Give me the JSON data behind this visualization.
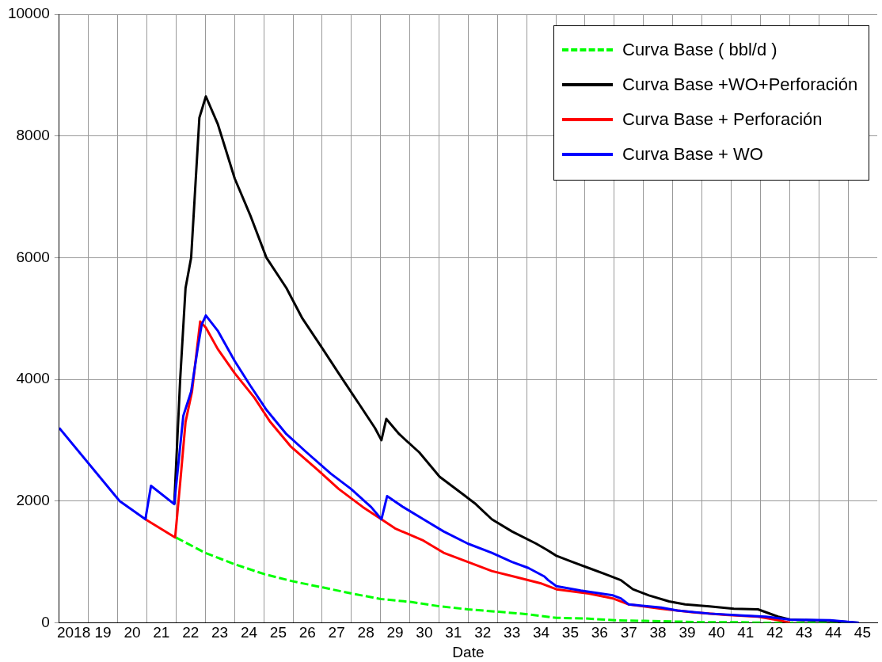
{
  "chart_data": {
    "type": "line",
    "xlabel": "Date",
    "legend": "top right",
    "grid": true,
    "marker": "none",
    "xlim": [
      "2018",
      "2046"
    ],
    "ylim": [
      0,
      10000
    ],
    "yticks": [
      0,
      2000,
      4000,
      6000,
      8000,
      10000
    ],
    "xticks": [
      {
        "value": "2019",
        "label": null
      },
      {
        "value": "2020",
        "label": null
      },
      {
        "value": "2021",
        "label": null
      },
      {
        "value": "2022",
        "label": null
      },
      {
        "value": "2023",
        "label": null
      },
      {
        "value": "2024",
        "label": null
      },
      {
        "value": "2025",
        "label": null
      },
      {
        "value": "2026",
        "label": null
      },
      {
        "value": "2027",
        "label": null
      },
      {
        "value": "2028",
        "label": null
      },
      {
        "value": "2029",
        "label": null
      },
      {
        "value": "2030",
        "label": null
      },
      {
        "value": "2031",
        "label": null
      },
      {
        "value": "2032",
        "label": null
      },
      {
        "value": "2033",
        "label": null
      },
      {
        "value": "2034",
        "label": null
      },
      {
        "value": "2035",
        "label": null
      },
      {
        "value": "2036",
        "label": null
      },
      {
        "value": "2037",
        "label": null
      },
      {
        "value": "2038",
        "label": null
      },
      {
        "value": "2039",
        "label": null
      },
      {
        "value": "2040",
        "label": null
      },
      {
        "value": "2041",
        "label": null
      },
      {
        "value": "2042",
        "label": null
      },
      {
        "value": "2043",
        "label": null
      },
      {
        "value": "2044",
        "label": null
      },
      {
        "value": "2045",
        "label": null
      },
      {
        "value": "2018-07-01",
        "label": "2018"
      },
      {
        "value": "2019-07-01",
        "label": "19"
      },
      {
        "value": "2020-07-01",
        "label": "20"
      },
      {
        "value": "2021-07-01",
        "label": "21"
      },
      {
        "value": "2022-07-01",
        "label": "22"
      },
      {
        "value": "2023-07-01",
        "label": "23"
      },
      {
        "value": "2024-07-01",
        "label": "24"
      },
      {
        "value": "2025-07-01",
        "label": "25"
      },
      {
        "value": "2026-07-01",
        "label": "26"
      },
      {
        "value": "2027-07-01",
        "label": "27"
      },
      {
        "value": "2028-07-01",
        "label": "28"
      },
      {
        "value": "2029-07-01",
        "label": "29"
      },
      {
        "value": "2030-07-01",
        "label": "30"
      },
      {
        "value": "2031-07-01",
        "label": "31"
      },
      {
        "value": "2032-07-01",
        "label": "32"
      },
      {
        "value": "2033-07-01",
        "label": "33"
      },
      {
        "value": "2034-07-01",
        "label": "34"
      },
      {
        "value": "2035-07-01",
        "label": "35"
      },
      {
        "value": "2036-07-01",
        "label": "36"
      },
      {
        "value": "2037-07-01",
        "label": "37"
      },
      {
        "value": "2038-07-01",
        "label": "38"
      },
      {
        "value": "2039-07-01",
        "label": "39"
      },
      {
        "value": "2040-07-01",
        "label": "40"
      },
      {
        "value": "2041-07-01",
        "label": "41"
      },
      {
        "value": "2042-07-01",
        "label": "42"
      },
      {
        "value": "2043-07-01",
        "label": "43"
      },
      {
        "value": "2044-07-01",
        "label": "44"
      },
      {
        "value": "2045-07-01",
        "label": "45"
      }
    ],
    "series": [
      {
        "name": "Curva Base ( bbl/d )",
        "color": "#00ff00",
        "line_style": "dashed",
        "x": [
          "2022-01-01",
          "2022-12-27",
          "2024-01-05",
          "2025-01-05",
          "2026-01-01",
          "2027-01-08",
          "2028-01-05",
          "2029-01-05",
          "2030-01-23",
          "2031-01-08",
          "2031-12-27",
          "2033-01-12",
          "2034-01-12",
          "2035-01-08",
          "2036-01-05",
          "2037-01-05",
          "2038-01-23",
          "2039-01-08",
          "2039-12-27",
          "2041-02-03",
          "2042-01-23",
          "2045-05-15"
        ],
        "values": [
          1400,
          1150,
          960,
          800,
          680,
          580,
          480,
          390,
          340,
          270,
          220,
          180,
          140,
          80,
          70,
          40,
          30,
          20,
          10,
          10,
          0,
          0
        ]
      },
      {
        "name": "Curva Base +WO+Perforación",
        "color": "#000000",
        "x": [
          "2021-12-09",
          "2022-02-21",
          "2022-04-29",
          "2022-07-08",
          "2022-10-19",
          "2023-01-08",
          "2023-06-05",
          "2024-01-04",
          "2024-07-15",
          "2025-02-03",
          "2025-10-11",
          "2026-04-29",
          "2027-01-08",
          "2027-07-26",
          "2028-04-04",
          "2028-10-22",
          "2029-01-11",
          "2029-03-13",
          "2029-08-21",
          "2030-04-29",
          "2031-01-08",
          "2031-11-07",
          "2032-04-04",
          "2032-10-22",
          "2033-07-01",
          "2034-04-29",
          "2034-09-09",
          "2035-01-08",
          "2035-07-26",
          "2036-02-14",
          "2036-09-05",
          "2037-03-23",
          "2037-08-21",
          "2038-03-09",
          "2038-11-17",
          "2039-06-05",
          "2040-04-04",
          "2041-02-03",
          "2041-12-02",
          "2042-08-10",
          "2043-01-08",
          "2044-05-25",
          "2045-05-15"
        ],
        "values": [
          1950,
          4000,
          5500,
          6000,
          8300,
          8650,
          8200,
          7300,
          6700,
          6000,
          5500,
          5000,
          4500,
          4100,
          3600,
          3200,
          3000,
          3350,
          3100,
          2800,
          2400,
          2100,
          1950,
          1700,
          1500,
          1300,
          1200,
          1100,
          1000,
          900,
          800,
          700,
          550,
          450,
          350,
          300,
          270,
          230,
          220,
          100,
          50,
          30,
          0
        ]
      },
      {
        "name": "Curva Base + Perforación",
        "color": "#ff0000",
        "x": [
          "2020-12-13",
          "2021-12-20",
          "2022-02-21",
          "2022-04-29",
          "2022-07-19",
          "2022-10-29",
          "2023-01-08",
          "2023-06-05",
          "2024-01-04",
          "2024-09-05",
          "2025-03-23",
          "2025-12-02",
          "2026-11-17",
          "2027-07-26",
          "2028-05-25",
          "2029-01-11",
          "2029-07-01",
          "2030-06-20",
          "2031-02-28",
          "2031-12-27",
          "2032-10-22",
          "2033-08-21",
          "2034-06-20",
          "2035-01-08",
          "2036-02-14",
          "2036-12-13",
          "2037-07-01",
          "2038-08-10",
          "2039-09-16",
          "2040-10-22",
          "2041-12-02",
          "2042-09-27",
          "2043-01-08"
        ],
        "values": [
          1700,
          1400,
          2300,
          3300,
          3800,
          4950,
          4850,
          4500,
          4100,
          3700,
          3300,
          2900,
          2500,
          2200,
          1900,
          1700,
          1550,
          1350,
          1150,
          1000,
          850,
          750,
          650,
          550,
          480,
          400,
          300,
          230,
          170,
          130,
          100,
          30,
          0
        ]
      },
      {
        "name": "Curva Base + WO",
        "color": "#0000ff",
        "x": [
          "2018-01-01",
          "2020-01-26",
          "2020-12-13",
          "2021-02-21",
          "2021-12-09",
          "2022-04-01",
          "2022-07-08",
          "2022-09-27",
          "2022-11-17",
          "2023-01-08",
          "2023-06-05",
          "2024-01-04",
          "2024-07-15",
          "2025-02-03",
          "2025-10-11",
          "2026-06-20",
          "2027-04-19",
          "2027-12-27",
          "2028-09-05",
          "2029-01-11",
          "2029-03-23",
          "2029-10-11",
          "2030-06-20",
          "2031-02-28",
          "2031-12-27",
          "2032-10-22",
          "2033-07-01",
          "2034-01-22",
          "2034-08-10",
          "2034-09-27",
          "2035-01-08",
          "2035-11-07",
          "2036-12-13",
          "2037-03-23",
          "2037-07-01",
          "2038-08-10",
          "2039-02-28",
          "2040-04-04",
          "2041-05-15",
          "2042-03-09",
          "2043-01-08",
          "2044-05-25",
          "2045-05-15"
        ],
        "values": [
          3200,
          2000,
          1700,
          2250,
          1950,
          3400,
          3800,
          4500,
          4900,
          5050,
          4800,
          4300,
          3900,
          3500,
          3100,
          2800,
          2450,
          2200,
          1900,
          1700,
          2080,
          1900,
          1700,
          1500,
          1300,
          1150,
          1000,
          900,
          760,
          700,
          600,
          530,
          450,
          400,
          300,
          250,
          200,
          150,
          120,
          100,
          50,
          40,
          0
        ]
      }
    ]
  }
}
